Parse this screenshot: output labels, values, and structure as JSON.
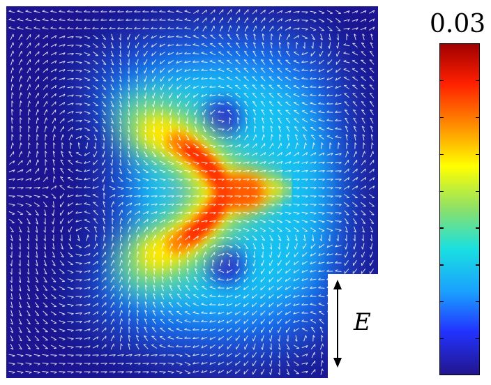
{
  "figure": {
    "colorbar": {
      "max_label": "0.03",
      "colormap": "jet",
      "colors": [
        "#22158c",
        "#2233ff",
        "#1aa0ff",
        "#19e0e0",
        "#8be06a",
        "#ffff00",
        "#ff9000",
        "#ff2000",
        "#a00000"
      ]
    },
    "field": {
      "background_color": "#1c1490",
      "vector_color": "#ffffff",
      "description_icon": "velocity-vector-field"
    },
    "annotation": {
      "field_label": "E",
      "arrow_icon": "double-headed-arrow"
    }
  }
}
